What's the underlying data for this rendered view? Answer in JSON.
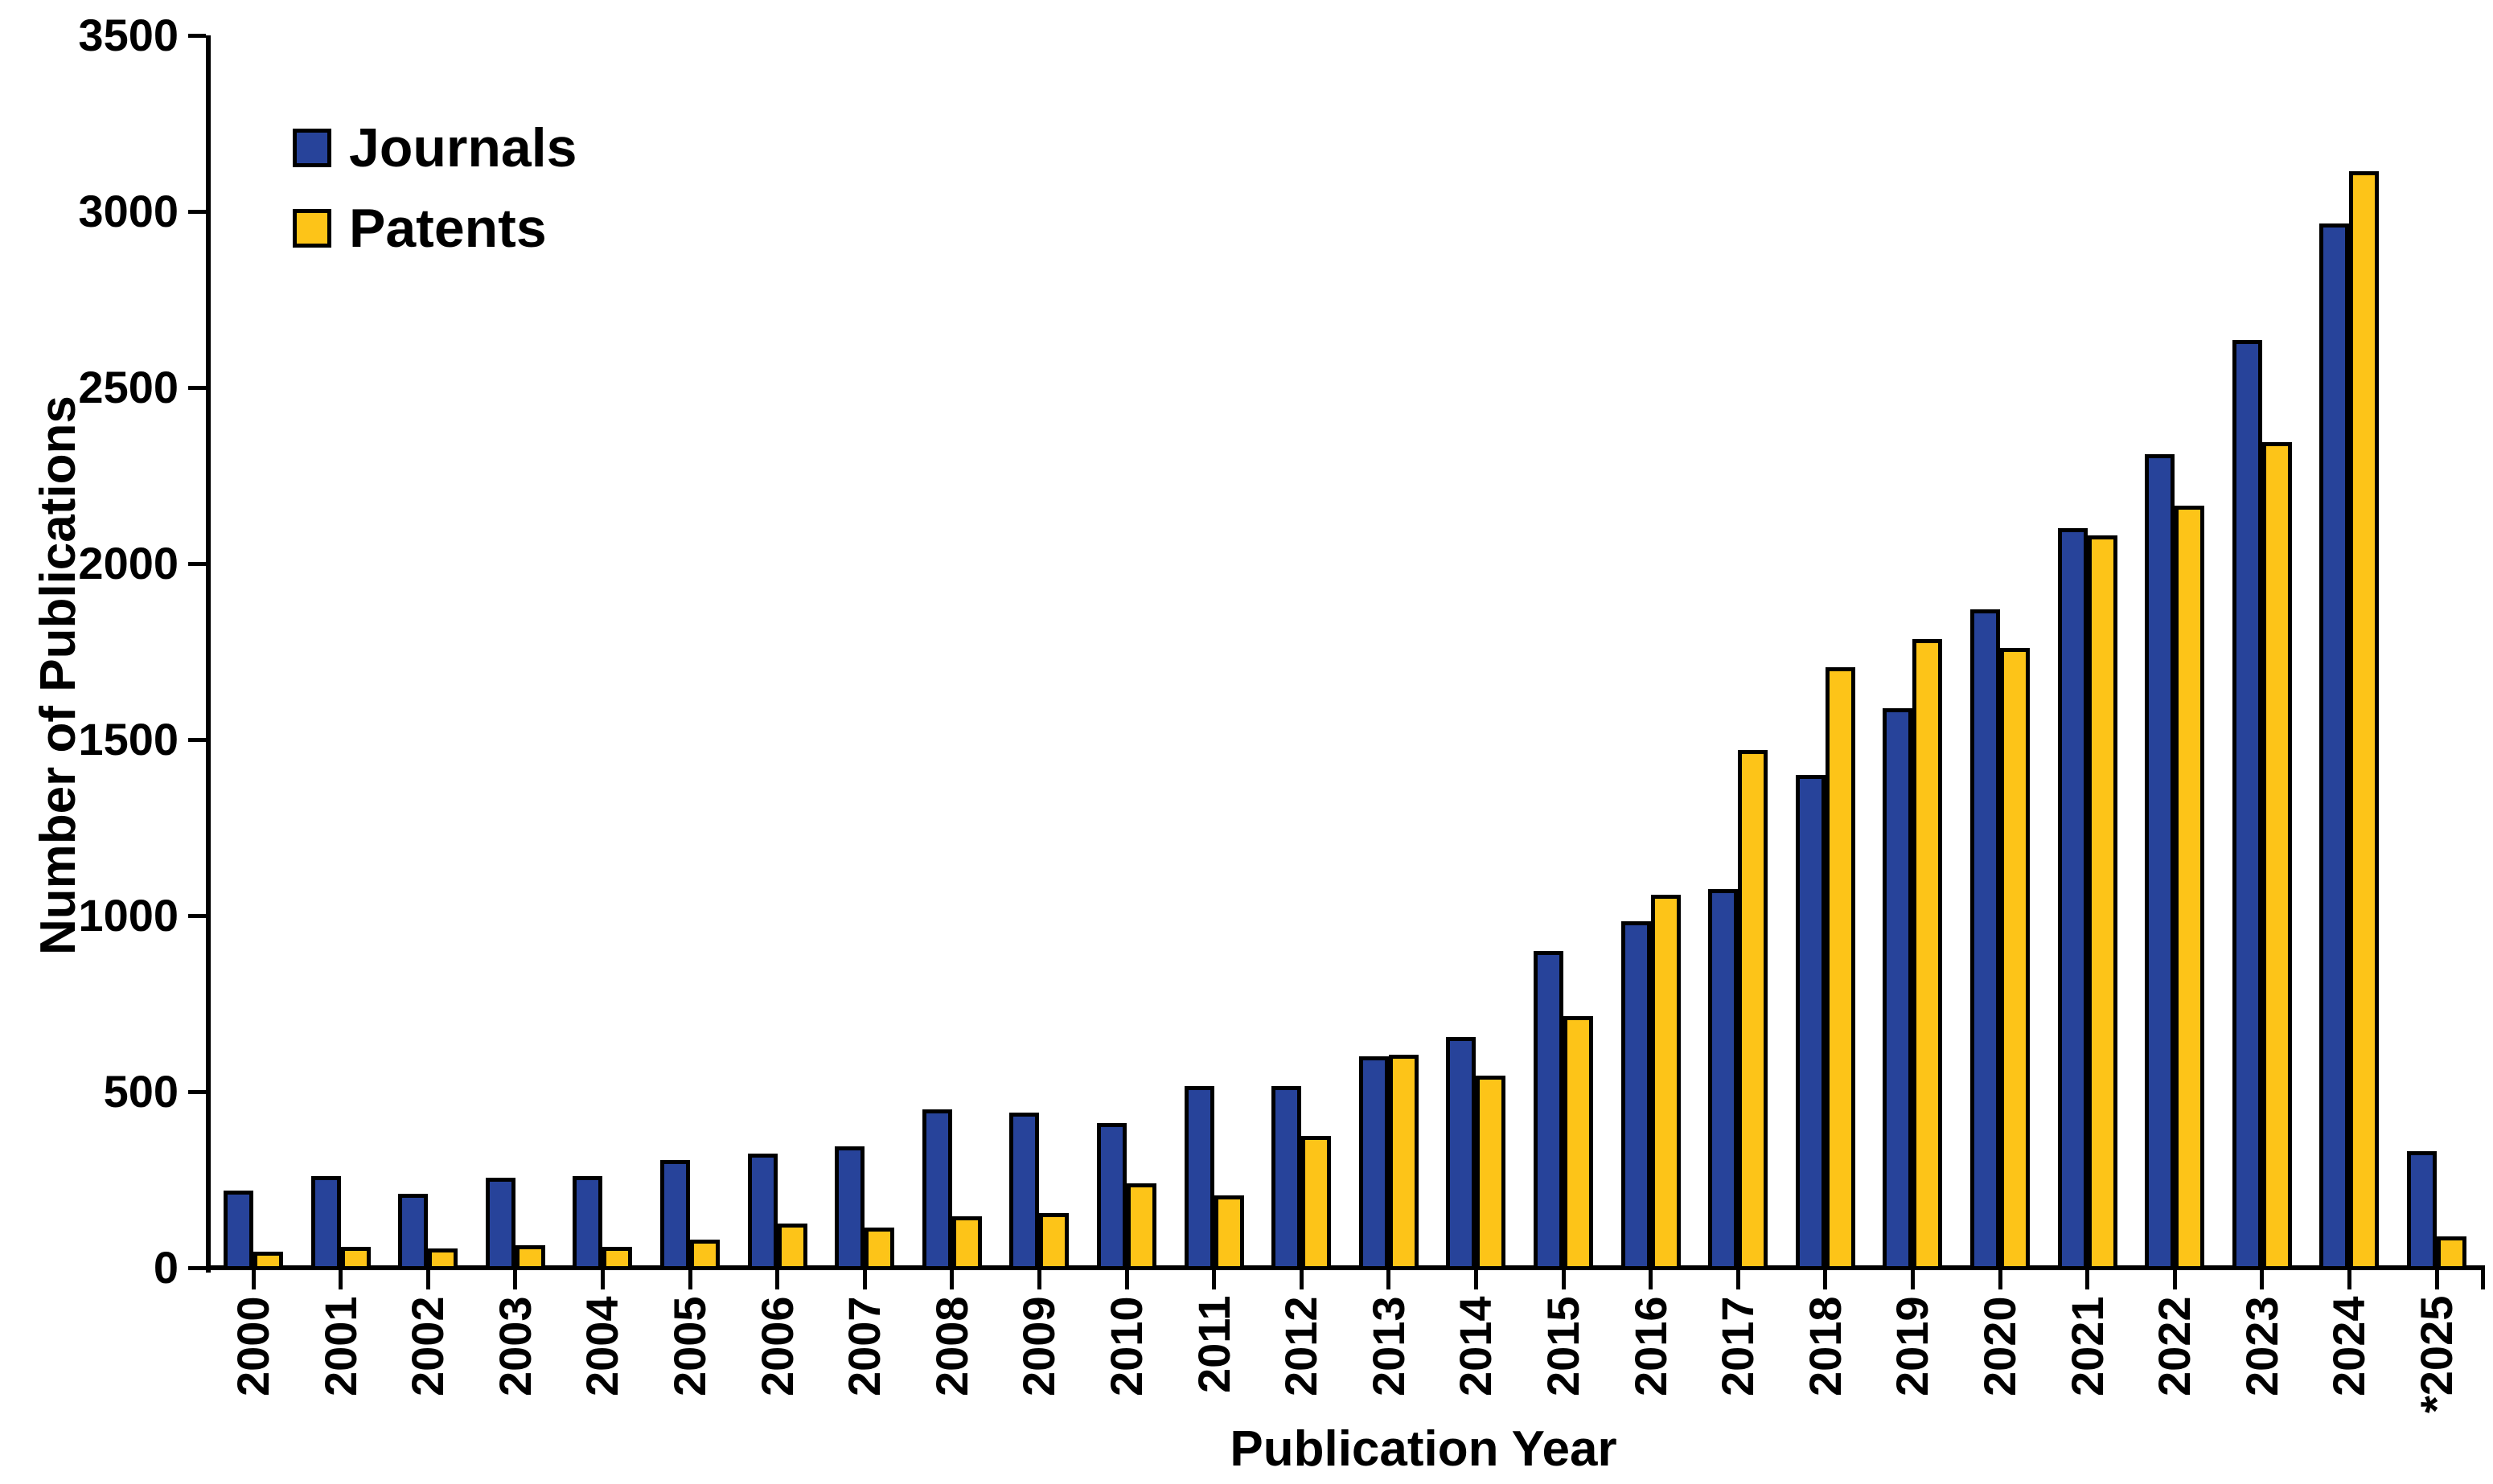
{
  "chart_data": {
    "type": "bar",
    "title": "",
    "xlabel": "Publication Year",
    "ylabel": "Number of Publications",
    "categories": [
      "2000",
      "2001",
      "2002",
      "2003",
      "2004",
      "2005",
      "2006",
      "2007",
      "2008",
      "2009",
      "2010",
      "2011",
      "2012",
      "2013",
      "2014",
      "2015",
      "2016",
      "2017",
      "2018",
      "2019",
      "2020",
      "2021",
      "2022",
      "2023",
      "2024",
      "*2025"
    ],
    "series": [
      {
        "name": "Journals",
        "color": "#27439A",
        "values": [
          220,
          260,
          210,
          255,
          260,
          305,
          325,
          345,
          450,
          440,
          410,
          515,
          515,
          600,
          655,
          900,
          985,
          1075,
          1400,
          1590,
          1870,
          2100,
          2310,
          2635,
          2965,
          330
        ]
      },
      {
        "name": "Patents",
        "color": "#FDC418",
        "values": [
          45,
          60,
          55,
          65,
          60,
          80,
          125,
          115,
          145,
          155,
          240,
          205,
          375,
          605,
          545,
          715,
          1060,
          1470,
          1705,
          1785,
          1760,
          2080,
          2165,
          2345,
          3115,
          90
        ]
      }
    ],
    "ylim": [
      0,
      3500
    ],
    "y_ticks": [
      0,
      500,
      1000,
      1500,
      2000,
      2500,
      3000,
      3500
    ],
    "grid": false,
    "legend_position": "top-left",
    "bar_outline_color": "#000000",
    "axis_color": "#000000",
    "background_color": "#FFFFFF"
  }
}
